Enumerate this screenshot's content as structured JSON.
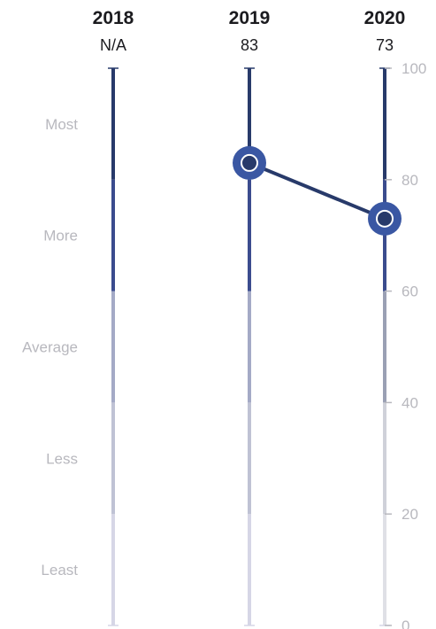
{
  "chart_data": {
    "type": "line",
    "y_range": [
      0,
      100
    ],
    "y_ticks": [
      {
        "value": 0,
        "label": "0"
      },
      {
        "value": 20,
        "label": "20"
      },
      {
        "value": 40,
        "label": "40"
      },
      {
        "value": 60,
        "label": "60"
      },
      {
        "value": 80,
        "label": "80"
      },
      {
        "value": 100,
        "label": "100"
      }
    ],
    "bands": [
      {
        "label": "Least",
        "from": 0,
        "to": 20,
        "color": "#d6d6e6"
      },
      {
        "label": "Less",
        "from": 20,
        "to": 40,
        "color": "#bfc2d4"
      },
      {
        "label": "Average",
        "from": 40,
        "to": 60,
        "color": "#a4aac6"
      },
      {
        "label": "More",
        "from": 60,
        "to": 80,
        "color": "#3b4c8e"
      },
      {
        "label": "Most",
        "from": 80,
        "to": 100,
        "color": "#283a6a"
      }
    ],
    "columns": [
      {
        "year": "2018",
        "value_label": "N/A",
        "value": null
      },
      {
        "year": "2019",
        "value_label": "83",
        "value": 83
      },
      {
        "year": "2020",
        "value_label": "73",
        "value": 73
      }
    ],
    "colors": {
      "marker_outer": "#3a57a3",
      "marker_inner": "#283a6a",
      "connector": "#283a6a",
      "axis_2020": [
        "#dfe0e6",
        "#cfd1d9",
        "#9aa0b4",
        "#3b4c8e",
        "#283a6a"
      ],
      "text_muted": "#b8b8be"
    }
  }
}
